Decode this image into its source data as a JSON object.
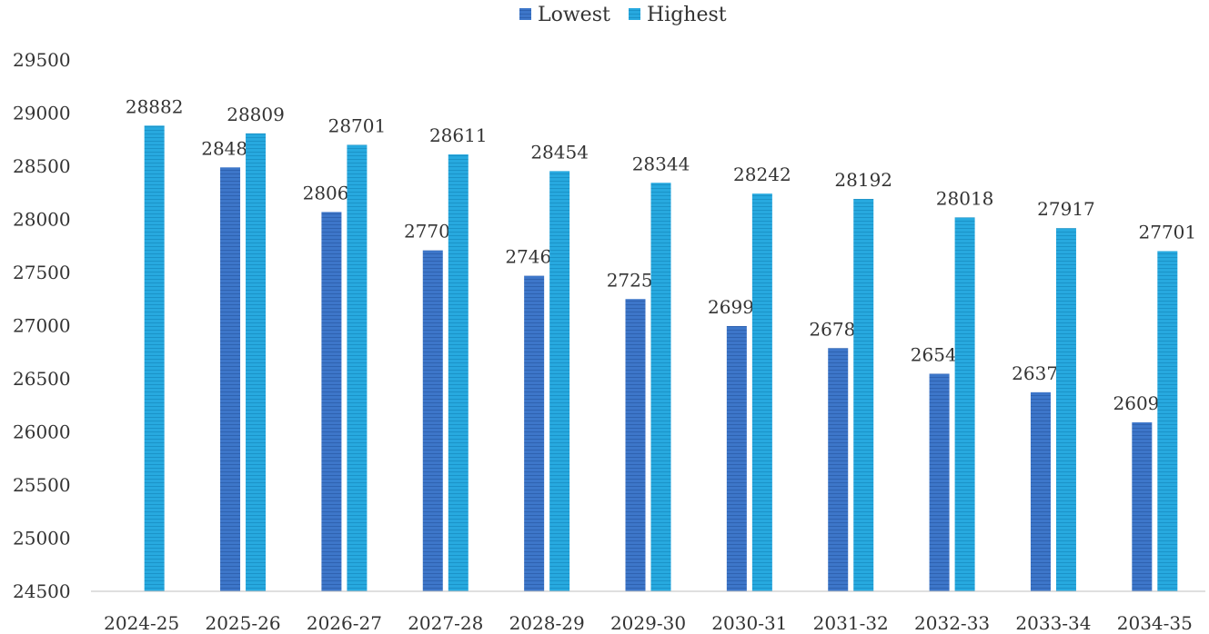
{
  "chart_data": {
    "type": "bar",
    "categories": [
      "2024-25",
      "2025-26",
      "2026-27",
      "2027-28",
      "2028-29",
      "2029-30",
      "2030-31",
      "2031-32",
      "2032-33",
      "2033-34",
      "2034-35"
    ],
    "series": [
      {
        "name": "Lowest",
        "color": "#3d76c9",
        "values": [
          null,
          28489,
          28069,
          27708,
          27469,
          27250,
          26996,
          26788,
          26547,
          26373,
          26090
        ]
      },
      {
        "name": "Highest",
        "color": "#27a9df",
        "values": [
          28882,
          28809,
          28701,
          28611,
          28454,
          28344,
          28242,
          28192,
          28018,
          27917,
          27701
        ]
      }
    ],
    "ylim": [
      24500,
      29500
    ],
    "yticks": [
      24500,
      25000,
      25500,
      26000,
      26500,
      27000,
      27500,
      28000,
      28500,
      29000,
      29500
    ],
    "legend_position": "top-center",
    "grid": false
  }
}
